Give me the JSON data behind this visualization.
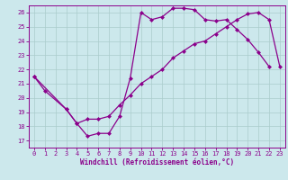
{
  "xlabel": "Windchill (Refroidissement éolien,°C)",
  "ylabel": "",
  "xlim": [
    -0.5,
    23.5
  ],
  "ylim": [
    16.5,
    26.5
  ],
  "xticks": [
    0,
    1,
    2,
    3,
    4,
    5,
    6,
    7,
    8,
    9,
    10,
    11,
    12,
    13,
    14,
    15,
    16,
    17,
    18,
    19,
    20,
    21,
    22,
    23
  ],
  "yticks": [
    17,
    18,
    19,
    20,
    21,
    22,
    23,
    24,
    25,
    26
  ],
  "background_color": "#cce8ec",
  "line_color": "#8b008b",
  "grid_color": "#aacccc",
  "line1_x": [
    0,
    1,
    3,
    4,
    5,
    6,
    7,
    8,
    9,
    10,
    11,
    12,
    13,
    14,
    15,
    16,
    17,
    18,
    19,
    20,
    21,
    22
  ],
  "line1_y": [
    21.5,
    20.5,
    19.2,
    18.2,
    17.3,
    17.5,
    17.5,
    18.7,
    21.4,
    26.0,
    25.5,
    25.7,
    26.3,
    26.3,
    26.2,
    25.5,
    25.4,
    25.5,
    24.8,
    24.1,
    23.2,
    22.2
  ],
  "line2_x": [
    0,
    3,
    4,
    5,
    6,
    7,
    8,
    9,
    10,
    11,
    12,
    13,
    14,
    15,
    16,
    17,
    18,
    19,
    20,
    21,
    22,
    23
  ],
  "line2_y": [
    21.5,
    19.2,
    18.2,
    18.5,
    18.5,
    18.7,
    19.5,
    20.2,
    21.0,
    21.5,
    22.0,
    22.8,
    23.3,
    23.8,
    24.0,
    24.5,
    25.0,
    25.5,
    25.9,
    26.0,
    25.5,
    22.2
  ],
  "marker": "D",
  "markersize": 2.5,
  "linewidth": 0.9
}
